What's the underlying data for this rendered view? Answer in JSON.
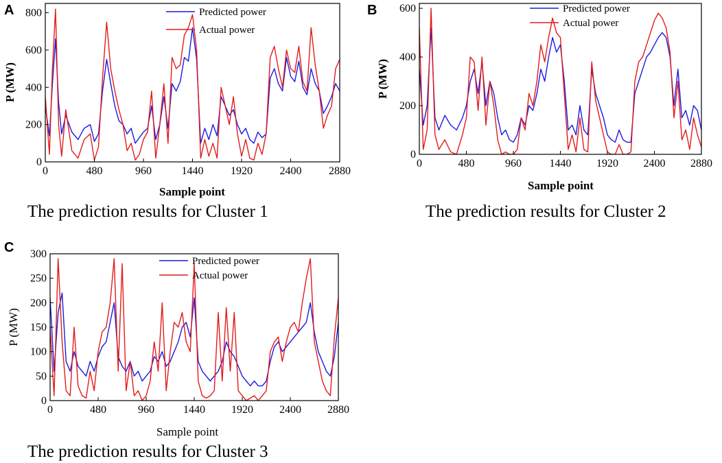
{
  "chart_data": [
    {
      "type": "line",
      "panel": "A",
      "caption": "The prediction results for Cluster 1",
      "xlabel": "Sample point",
      "ylabel": "P (MW)",
      "xlim": [
        0,
        2880
      ],
      "ylim": [
        0,
        850
      ],
      "xticks": [
        0,
        480,
        960,
        1440,
        1920,
        2400,
        2880
      ],
      "yticks": [
        0,
        200,
        400,
        600,
        800
      ],
      "legend": "top-right",
      "series": [
        {
          "name": "Predicted power",
          "color": "#1a1adf",
          "x": [
            0,
            40,
            70,
            100,
            130,
            160,
            200,
            260,
            320,
            380,
            440,
            480,
            520,
            560,
            600,
            640,
            680,
            720,
            760,
            800,
            840,
            880,
            920,
            960,
            1000,
            1040,
            1080,
            1120,
            1160,
            1200,
            1240,
            1280,
            1320,
            1360,
            1400,
            1440,
            1480,
            1520,
            1560,
            1600,
            1640,
            1680,
            1720,
            1760,
            1800,
            1840,
            1880,
            1920,
            1960,
            2000,
            2040,
            2080,
            2120,
            2160,
            2200,
            2240,
            2280,
            2320,
            2360,
            2400,
            2440,
            2480,
            2520,
            2560,
            2600,
            2640,
            2680,
            2720,
            2760,
            2800,
            2840,
            2880
          ],
          "values": [
            300,
            140,
            420,
            660,
            320,
            150,
            250,
            160,
            120,
            180,
            200,
            110,
            150,
            380,
            550,
            420,
            300,
            220,
            200,
            150,
            180,
            100,
            130,
            160,
            180,
            300,
            120,
            200,
            350,
            180,
            420,
            380,
            430,
            560,
            540,
            720,
            550,
            100,
            180,
            120,
            200,
            140,
            350,
            300,
            250,
            280,
            200,
            150,
            180,
            120,
            100,
            160,
            130,
            150,
            450,
            500,
            420,
            380,
            560,
            460,
            430,
            540,
            400,
            360,
            500,
            420,
            380,
            260,
            300,
            350,
            420,
            380
          ]
        },
        {
          "name": "Actual power",
          "color": "#e31a1a",
          "x": [
            0,
            40,
            70,
            100,
            130,
            160,
            200,
            260,
            320,
            380,
            440,
            480,
            520,
            560,
            600,
            640,
            680,
            720,
            760,
            800,
            840,
            880,
            920,
            960,
            1000,
            1040,
            1080,
            1120,
            1160,
            1200,
            1240,
            1280,
            1320,
            1360,
            1400,
            1440,
            1480,
            1520,
            1560,
            1600,
            1640,
            1680,
            1720,
            1760,
            1800,
            1840,
            1880,
            1920,
            1960,
            2000,
            2040,
            2080,
            2120,
            2160,
            2200,
            2240,
            2280,
            2320,
            2360,
            2400,
            2440,
            2480,
            2520,
            2560,
            2600,
            2640,
            2680,
            2720,
            2760,
            2800,
            2840,
            2880
          ],
          "values": [
            350,
            40,
            500,
            820,
            200,
            30,
            280,
            60,
            20,
            120,
            150,
            10,
            80,
            450,
            750,
            500,
            380,
            280,
            200,
            60,
            100,
            10,
            40,
            120,
            160,
            380,
            20,
            200,
            420,
            100,
            560,
            500,
            520,
            680,
            720,
            790,
            600,
            20,
            120,
            30,
            100,
            20,
            400,
            300,
            200,
            350,
            150,
            30,
            120,
            20,
            10,
            100,
            40,
            150,
            560,
            620,
            500,
            400,
            600,
            500,
            480,
            620,
            430,
            380,
            720,
            520,
            380,
            180,
            250,
            300,
            500,
            550
          ]
        }
      ]
    },
    {
      "type": "line",
      "panel": "B",
      "caption": "The prediction results for Cluster 2",
      "xlabel": "Sample point",
      "ylabel": "P (MW)",
      "xlim": [
        0,
        2880
      ],
      "ylim": [
        0,
        620
      ],
      "xticks": [
        0,
        480,
        960,
        1440,
        1920,
        2400,
        2880
      ],
      "yticks": [
        0,
        200,
        400,
        600
      ],
      "legend": "top-right",
      "series": [
        {
          "name": "Predicted power",
          "color": "#1a1adf",
          "x": [
            0,
            40,
            80,
            120,
            160,
            200,
            260,
            320,
            380,
            440,
            480,
            520,
            560,
            600,
            640,
            680,
            720,
            760,
            800,
            840,
            880,
            920,
            960,
            1000,
            1040,
            1080,
            1120,
            1160,
            1200,
            1240,
            1280,
            1320,
            1360,
            1400,
            1440,
            1480,
            1520,
            1560,
            1600,
            1640,
            1680,
            1720,
            1760,
            1800,
            1840,
            1880,
            1920,
            1960,
            2000,
            2040,
            2080,
            2120,
            2160,
            2200,
            2240,
            2280,
            2320,
            2360,
            2400,
            2440,
            2480,
            2520,
            2560,
            2600,
            2640,
            2680,
            2720,
            2760,
            2800,
            2840,
            2880
          ],
          "values": [
            350,
            120,
            200,
            520,
            150,
            100,
            160,
            120,
            100,
            150,
            200,
            300,
            350,
            250,
            380,
            200,
            300,
            250,
            150,
            80,
            100,
            60,
            50,
            80,
            150,
            120,
            200,
            180,
            250,
            350,
            300,
            400,
            480,
            420,
            450,
            300,
            100,
            120,
            80,
            200,
            100,
            80,
            350,
            250,
            200,
            150,
            80,
            60,
            50,
            100,
            60,
            50,
            50,
            250,
            300,
            350,
            400,
            420,
            450,
            480,
            500,
            480,
            400,
            200,
            350,
            150,
            180,
            120,
            200,
            180,
            100
          ]
        },
        {
          "name": "Actual power",
          "color": "#e31a1a",
          "x": [
            0,
            40,
            80,
            120,
            160,
            200,
            260,
            320,
            380,
            440,
            480,
            520,
            560,
            600,
            640,
            680,
            720,
            760,
            800,
            840,
            880,
            920,
            960,
            1000,
            1040,
            1080,
            1120,
            1160,
            1200,
            1240,
            1280,
            1320,
            1360,
            1400,
            1440,
            1480,
            1520,
            1560,
            1600,
            1640,
            1680,
            1720,
            1760,
            1800,
            1840,
            1880,
            1920,
            1960,
            2000,
            2040,
            2080,
            2120,
            2160,
            2200,
            2240,
            2280,
            2320,
            2360,
            2400,
            2440,
            2480,
            2520,
            2560,
            2600,
            2640,
            2680,
            2720,
            2760,
            2800,
            2840,
            2880
          ],
          "values": [
            520,
            20,
            100,
            600,
            80,
            20,
            60,
            10,
            0,
            80,
            150,
            400,
            380,
            180,
            400,
            120,
            300,
            200,
            60,
            0,
            10,
            0,
            0,
            20,
            150,
            100,
            250,
            200,
            300,
            450,
            380,
            480,
            560,
            500,
            480,
            250,
            20,
            80,
            10,
            150,
            20,
            10,
            380,
            220,
            150,
            80,
            10,
            0,
            0,
            40,
            0,
            0,
            10,
            300,
            380,
            400,
            450,
            500,
            550,
            580,
            560,
            520,
            420,
            150,
            300,
            60,
            100,
            20,
            150,
            80,
            30
          ]
        }
      ]
    },
    {
      "type": "line",
      "panel": "C",
      "caption": "The prediction results for Cluster 3",
      "xlabel": "Sample point",
      "ylabel": "P (MW)",
      "xlim": [
        0,
        2880
      ],
      "ylim": [
        0,
        300
      ],
      "xticks": [
        0,
        480,
        960,
        1440,
        1920,
        2400,
        2880
      ],
      "yticks": [
        0,
        50,
        100,
        150,
        200,
        250,
        300
      ],
      "legend": "top-right",
      "series": [
        {
          "name": "Predicted power",
          "color": "#1a1adf",
          "x": [
            0,
            40,
            80,
            120,
            160,
            200,
            240,
            280,
            320,
            360,
            400,
            440,
            480,
            520,
            560,
            600,
            640,
            680,
            720,
            760,
            800,
            840,
            880,
            920,
            960,
            1000,
            1040,
            1080,
            1120,
            1160,
            1200,
            1240,
            1280,
            1320,
            1360,
            1400,
            1440,
            1480,
            1520,
            1560,
            1600,
            1640,
            1680,
            1720,
            1760,
            1800,
            1840,
            1880,
            1920,
            1960,
            2000,
            2040,
            2080,
            2120,
            2160,
            2200,
            2240,
            2280,
            2320,
            2360,
            2400,
            2440,
            2480,
            2520,
            2560,
            2600,
            2640,
            2680,
            2720,
            2760,
            2800,
            2840,
            2880
          ],
          "values": [
            210,
            60,
            180,
            220,
            80,
            60,
            100,
            70,
            60,
            50,
            80,
            60,
            90,
            110,
            120,
            160,
            200,
            90,
            70,
            60,
            80,
            50,
            60,
            40,
            50,
            60,
            90,
            80,
            100,
            70,
            80,
            100,
            120,
            150,
            160,
            130,
            210,
            80,
            60,
            50,
            40,
            50,
            60,
            80,
            120,
            100,
            90,
            70,
            50,
            40,
            30,
            40,
            30,
            30,
            40,
            80,
            110,
            120,
            100,
            110,
            120,
            130,
            140,
            150,
            160,
            200,
            140,
            100,
            80,
            60,
            50,
            90,
            160
          ]
        },
        {
          "name": "Actual power",
          "color": "#e31a1a",
          "x": [
            0,
            40,
            80,
            120,
            160,
            200,
            240,
            280,
            320,
            360,
            400,
            440,
            480,
            520,
            560,
            600,
            640,
            680,
            720,
            760,
            800,
            840,
            880,
            920,
            960,
            1000,
            1040,
            1080,
            1120,
            1160,
            1200,
            1240,
            1280,
            1320,
            1360,
            1400,
            1440,
            1480,
            1520,
            1560,
            1600,
            1640,
            1680,
            1720,
            1760,
            1800,
            1840,
            1880,
            1920,
            1960,
            2000,
            2040,
            2080,
            2120,
            2160,
            2200,
            2240,
            2280,
            2320,
            2360,
            2400,
            2440,
            2480,
            2520,
            2560,
            2600,
            2640,
            2680,
            2720,
            2760,
            2800,
            2840,
            2880
          ],
          "values": [
            150,
            10,
            290,
            120,
            20,
            10,
            150,
            30,
            10,
            5,
            60,
            20,
            100,
            140,
            150,
            200,
            290,
            60,
            280,
            20,
            80,
            10,
            20,
            0,
            10,
            40,
            120,
            60,
            200,
            20,
            100,
            160,
            150,
            180,
            120,
            100,
            280,
            40,
            10,
            5,
            10,
            20,
            180,
            40,
            190,
            60,
            180,
            20,
            10,
            0,
            5,
            10,
            0,
            10,
            20,
            100,
            120,
            130,
            80,
            120,
            150,
            160,
            140,
            200,
            250,
            290,
            120,
            80,
            40,
            20,
            10,
            130,
            210
          ]
        }
      ]
    }
  ]
}
